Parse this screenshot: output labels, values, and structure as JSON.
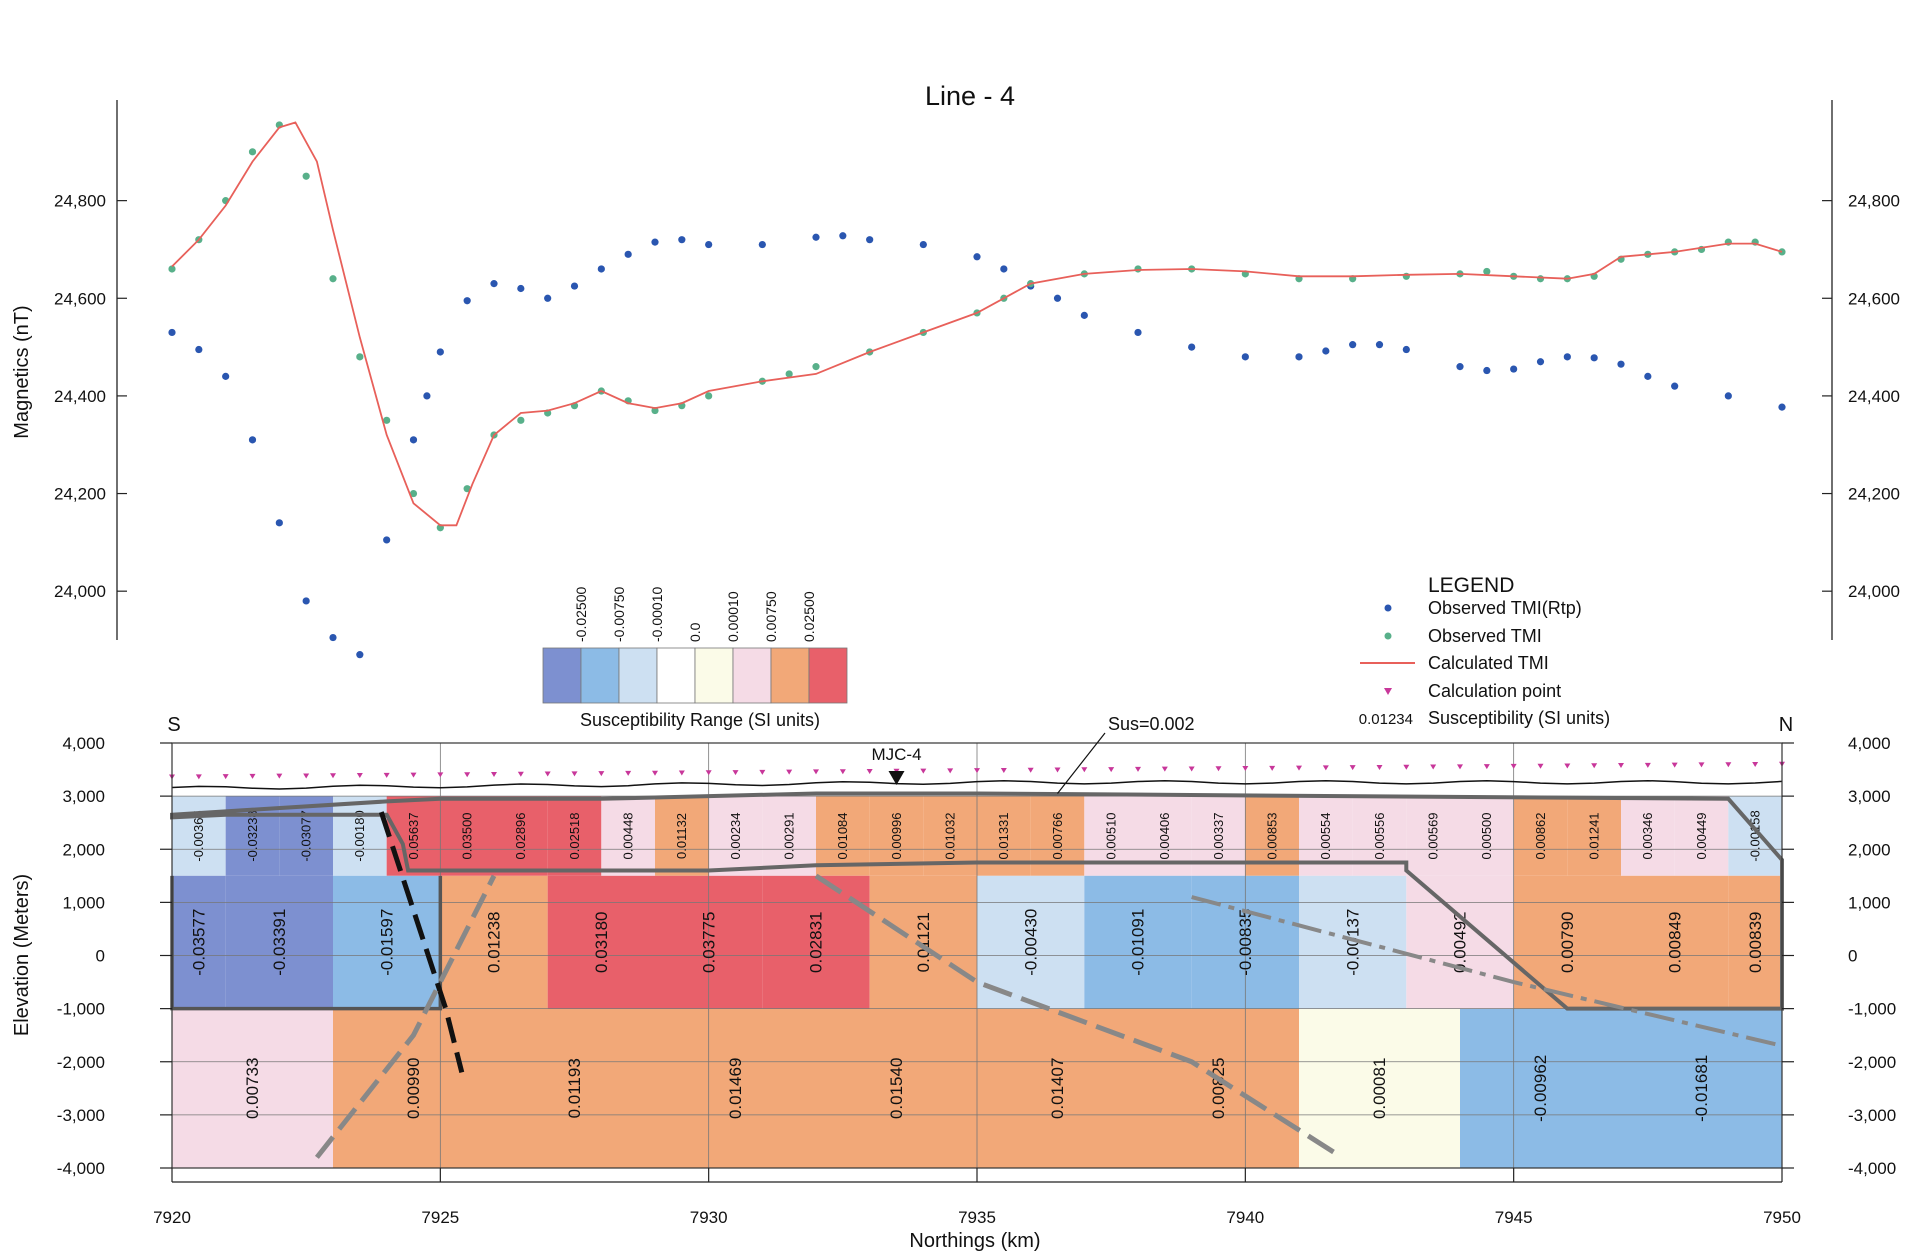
{
  "chart_data": [
    {
      "type": "scatter",
      "title": "Line - 4",
      "ylabel": "Magnetics (nT)",
      "xlim": [
        7920,
        7950
      ],
      "ylim": [
        23900,
        25000
      ],
      "yticks": [
        24000,
        24200,
        24400,
        24600,
        24800
      ],
      "ytick_labels": [
        "24,000",
        "24,200",
        "24,400",
        "24,600",
        "24,800"
      ],
      "series": [
        {
          "name": "Observed TMI(Rtp)",
          "kind": "points",
          "color": "#2a56b0",
          "x": [
            7920,
            7920.5,
            7921,
            7921.5,
            7922,
            7922.5,
            7923,
            7923.5,
            7924,
            7924.5,
            7924.75,
            7925,
            7925.5,
            7926,
            7926.5,
            7927,
            7927.5,
            7928,
            7928.5,
            7929,
            7929.5,
            7930,
            7931,
            7932,
            7932.5,
            7933,
            7934,
            7935,
            7935.5,
            7936,
            7936.5,
            7937,
            7938,
            7939,
            7940,
            7941,
            7941.5,
            7942,
            7942.5,
            7943,
            7944,
            7944.5,
            7945,
            7945.5,
            7946,
            7946.5,
            7947,
            7947.5,
            7948,
            7949,
            7950
          ],
          "y": [
            24530,
            24495,
            24440,
            24310,
            24140,
            23980,
            23905,
            23870,
            24105,
            24310,
            24400,
            24490,
            24595,
            24630,
            24620,
            24600,
            24625,
            24660,
            24690,
            24715,
            24720,
            24710,
            24710,
            24725,
            24728,
            24720,
            24710,
            24685,
            24660,
            24625,
            24600,
            24565,
            24530,
            24500,
            24480,
            24480,
            24492,
            24505,
            24505,
            24495,
            24460,
            24452,
            24455,
            24470,
            24480,
            24478,
            24465,
            24440,
            24420,
            24400,
            24377
          ]
        },
        {
          "name": "Observed TMI",
          "kind": "points",
          "color": "#58b08a",
          "x": [
            7920,
            7920.5,
            7921,
            7921.5,
            7922,
            7922.5,
            7923,
            7923.5,
            7924,
            7924.5,
            7925,
            7925.5,
            7926,
            7926.5,
            7927,
            7927.5,
            7928,
            7928.5,
            7929,
            7929.5,
            7930,
            7931,
            7931.5,
            7932,
            7933,
            7934,
            7935,
            7935.5,
            7936,
            7937,
            7938,
            7939,
            7940,
            7941,
            7942,
            7943,
            7944,
            7944.5,
            7945,
            7945.5,
            7946,
            7946.5,
            7947,
            7947.5,
            7948,
            7948.5,
            7949,
            7949.5,
            7950
          ],
          "y": [
            24660,
            24720,
            24800,
            24900,
            24955,
            24850,
            24640,
            24480,
            24350,
            24200,
            24130,
            24210,
            24320,
            24350,
            24365,
            24380,
            24410,
            24390,
            24370,
            24380,
            24400,
            24430,
            24445,
            24460,
            24490,
            24530,
            24570,
            24600,
            24630,
            24650,
            24660,
            24660,
            24650,
            24640,
            24640,
            24645,
            24650,
            24655,
            24645,
            24640,
            24640,
            24645,
            24680,
            24690,
            24695,
            24700,
            24715,
            24715,
            24695
          ]
        },
        {
          "name": "Calculated TMI",
          "kind": "line",
          "color": "#e8605a",
          "x": [
            7920,
            7920.5,
            7921,
            7921.5,
            7922,
            7922.3,
            7922.7,
            7923,
            7923.5,
            7924,
            7924.5,
            7925,
            7925.3,
            7925.6,
            7926,
            7926.5,
            7927,
            7927.5,
            7928,
            7928.5,
            7929,
            7929.5,
            7930,
            7931,
            7932,
            7933,
            7934,
            7935,
            7935.5,
            7936,
            7937,
            7938,
            7939,
            7940,
            7941,
            7942,
            7943,
            7944,
            7945,
            7946,
            7946.5,
            7947,
            7948,
            7949,
            7949.5,
            7950
          ],
          "y": [
            24665,
            24720,
            24790,
            24880,
            24950,
            24960,
            24880,
            24740,
            24520,
            24320,
            24180,
            24135,
            24135,
            24220,
            24320,
            24365,
            24370,
            24385,
            24410,
            24385,
            24375,
            24385,
            24410,
            24430,
            24445,
            24490,
            24530,
            24570,
            24600,
            24630,
            24650,
            24658,
            24660,
            24655,
            24645,
            24645,
            24648,
            24650,
            24645,
            24640,
            24650,
            24685,
            24695,
            24712,
            24712,
            24695
          ]
        }
      ]
    },
    {
      "type": "heatmap",
      "ylabel": "Elevation (Meters)",
      "xlabel": "Northings (km)",
      "xlim": [
        7920,
        7950
      ],
      "ylim": [
        -4000,
        4000
      ],
      "xticks": [
        7920,
        7925,
        7930,
        7935,
        7940,
        7945,
        7950
      ],
      "yticks": [
        -4000,
        -3000,
        -2000,
        -1000,
        0,
        1000,
        2000,
        3000,
        4000
      ],
      "ytick_labels": [
        "-4,000",
        "-3,000",
        "-2,000",
        "-1,000",
        "0",
        "1,000",
        "2,000",
        "3,000",
        "4,000"
      ],
      "end_labels": {
        "left": "S",
        "right": "N"
      },
      "annotations": {
        "mjc": "MJC-4",
        "sus": "Sus=0.002",
        "mjc_x": 7933.5,
        "sus_x": 7936.5
      },
      "upper_layer": [
        {
          "x0": 7920,
          "x1": 7921,
          "value": "-0.00365",
          "color": "#cde0f2"
        },
        {
          "x0": 7921,
          "x1": 7922,
          "value": "-0.03238",
          "color": "#7d90d0"
        },
        {
          "x0": 7922,
          "x1": 7923,
          "value": "-0.03077",
          "color": "#7d90d0"
        },
        {
          "x0": 7923,
          "x1": 7924,
          "value": "-0.00180",
          "color": "#cde0f2"
        },
        {
          "x0": 7924,
          "x1": 7925,
          "value": "0.05637",
          "color": "#e8606a"
        },
        {
          "x0": 7925,
          "x1": 7926,
          "value": "0.03500",
          "color": "#e8606a"
        },
        {
          "x0": 7926,
          "x1": 7927,
          "value": "0.02896",
          "color": "#e8606a"
        },
        {
          "x0": 7927,
          "x1": 7928,
          "value": "0.02518",
          "color": "#e8606a"
        },
        {
          "x0": 7928,
          "x1": 7929,
          "value": "0.00448",
          "color": "#f5dbe6"
        },
        {
          "x0": 7929,
          "x1": 7930,
          "value": "0.01132",
          "color": "#f2a878"
        },
        {
          "x0": 7930,
          "x1": 7931,
          "value": "0.00234",
          "color": "#f5dbe6"
        },
        {
          "x0": 7931,
          "x1": 7932,
          "value": "0.00291",
          "color": "#f5dbe6"
        },
        {
          "x0": 7932,
          "x1": 7933,
          "value": "0.01084",
          "color": "#f2a878"
        },
        {
          "x0": 7933,
          "x1": 7934,
          "value": "0.00996",
          "color": "#f2a878"
        },
        {
          "x0": 7934,
          "x1": 7935,
          "value": "0.01032",
          "color": "#f2a878"
        },
        {
          "x0": 7935,
          "x1": 7936,
          "value": "0.01331",
          "color": "#f2a878"
        },
        {
          "x0": 7936,
          "x1": 7937,
          "value": "0.00766",
          "color": "#f2a878"
        },
        {
          "x0": 7937,
          "x1": 7938,
          "value": "0.00510",
          "color": "#f5dbe6"
        },
        {
          "x0": 7938,
          "x1": 7939,
          "value": "0.00406",
          "color": "#f5dbe6"
        },
        {
          "x0": 7939,
          "x1": 7940,
          "value": "0.00337",
          "color": "#f5dbe6"
        },
        {
          "x0": 7940,
          "x1": 7941,
          "value": "0.00853",
          "color": "#f2a878"
        },
        {
          "x0": 7941,
          "x1": 7942,
          "value": "0.00554",
          "color": "#f5dbe6"
        },
        {
          "x0": 7942,
          "x1": 7943,
          "value": "0.00556",
          "color": "#f5dbe6"
        },
        {
          "x0": 7943,
          "x1": 7944,
          "value": "0.00569",
          "color": "#f5dbe6"
        },
        {
          "x0": 7944,
          "x1": 7945,
          "value": "0.00500",
          "color": "#f5dbe6"
        },
        {
          "x0": 7945,
          "x1": 7946,
          "value": "0.00862",
          "color": "#f2a878"
        },
        {
          "x0": 7946,
          "x1": 7947,
          "value": "0.01241",
          "color": "#f2a878"
        },
        {
          "x0": 7947,
          "x1": 7948,
          "value": "0.00346",
          "color": "#f5dbe6"
        },
        {
          "x0": 7948,
          "x1": 7949,
          "value": "0.00449",
          "color": "#f5dbe6"
        },
        {
          "x0": 7949,
          "x1": 7950,
          "value": "-0.00158",
          "color": "#cde0f2"
        }
      ],
      "middle_layer": [
        {
          "x0": 7920,
          "x1": 7921,
          "value": "-0.03577",
          "color": "#7d90d0"
        },
        {
          "x0": 7921,
          "x1": 7923,
          "value": "-0.03391",
          "color": "#7d90d0"
        },
        {
          "x0": 7923,
          "x1": 7925,
          "value": "-0.01597",
          "color": "#8cbbe6"
        },
        {
          "x0": 7925,
          "x1": 7927,
          "value": "0.01238",
          "color": "#f2a878"
        },
        {
          "x0": 7927,
          "x1": 7929,
          "value": "0.03180",
          "color": "#e8606a"
        },
        {
          "x0": 7929,
          "x1": 7931,
          "value": "0.03775",
          "color": "#e8606a"
        },
        {
          "x0": 7931,
          "x1": 7933,
          "value": "0.02831",
          "color": "#e8606a"
        },
        {
          "x0": 7933,
          "x1": 7935,
          "value": "0.01121",
          "color": "#f2a878"
        },
        {
          "x0": 7935,
          "x1": 7937,
          "value": "-0.00430",
          "color": "#cde0f2"
        },
        {
          "x0": 7937,
          "x1": 7939,
          "value": "-0.01091",
          "color": "#8cbbe6"
        },
        {
          "x0": 7939,
          "x1": 7941,
          "value": "-0.00835",
          "color": "#8cbbe6"
        },
        {
          "x0": 7941,
          "x1": 7943,
          "value": "-0.00137",
          "color": "#cde0f2"
        },
        {
          "x0": 7943,
          "x1": 7945,
          "value": "0.00492",
          "color": "#f5dbe6"
        },
        {
          "x0": 7945,
          "x1": 7947,
          "value": "0.00790",
          "color": "#f2a878"
        },
        {
          "x0": 7947,
          "x1": 7949,
          "value": "0.00849",
          "color": "#f2a878"
        },
        {
          "x0": 7949,
          "x1": 7950,
          "value": "0.00839",
          "color": "#f2a878"
        }
      ],
      "lower_layer": [
        {
          "x0": 7920,
          "x1": 7923,
          "value": "0.00733",
          "color": "#f5dbe6"
        },
        {
          "x0": 7923,
          "x1": 7926,
          "value": "0.00990",
          "color": "#f2a878"
        },
        {
          "x0": 7926,
          "x1": 7929,
          "value": "0.01193",
          "color": "#f2a878"
        },
        {
          "x0": 7929,
          "x1": 7932,
          "value": "0.01469",
          "color": "#f2a878"
        },
        {
          "x0": 7932,
          "x1": 7935,
          "value": "0.01540",
          "color": "#f2a878"
        },
        {
          "x0": 7935,
          "x1": 7938,
          "value": "0.01407",
          "color": "#f2a878"
        },
        {
          "x0": 7938,
          "x1": 7941,
          "value": "0.00825",
          "color": "#f2a878"
        },
        {
          "x0": 7941,
          "x1": 7944,
          "value": "0.00081",
          "color": "#fbfbe8"
        },
        {
          "x0": 7944,
          "x1": 7947,
          "value": "-0.00962",
          "color": "#8cbbe6"
        },
        {
          "x0": 7947,
          "x1": 7950,
          "value": "-0.01681",
          "color": "#8cbbe6"
        }
      ],
      "layer_depths": {
        "upper": [
          3000,
          1500
        ],
        "middle": [
          1500,
          -1000
        ],
        "lower": [
          -1000,
          -4000
        ]
      }
    }
  ],
  "scale": {
    "title": "Susceptibility Range (SI units)",
    "labels": [
      "-0.02500",
      "-0.00750",
      "-0.00010",
      "0.0",
      "0.00010",
      "0.00750",
      "0.02500"
    ],
    "colors": [
      "#7d90d0",
      "#8cbbe6",
      "#cde0f2",
      "#ffffff",
      "#fbfbe8",
      "#f5dbe6",
      "#f2a878",
      "#e8606a"
    ]
  },
  "legend": {
    "title": "LEGEND",
    "items": [
      {
        "label": "Observed TMI(Rtp)",
        "symbol": "dot-blue"
      },
      {
        "label": "Observed TMI",
        "symbol": "dot-green"
      },
      {
        "label": "Calculated TMI",
        "symbol": "line-red"
      },
      {
        "label": "Calculation point",
        "symbol": "triangle-magenta"
      },
      {
        "label": "Susceptibility (SI units)",
        "symbol": "text",
        "sample": "0.01234"
      }
    ]
  }
}
